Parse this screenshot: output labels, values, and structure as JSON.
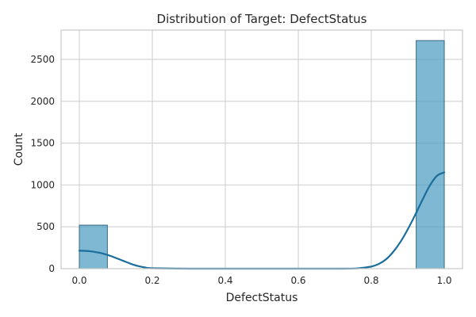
{
  "chart_data": {
    "type": "bar",
    "subtype": "histogram-with-kde",
    "title": "Distribution of Target: DefectStatus",
    "xlabel": "DefectStatus",
    "ylabel": "Count",
    "xlim": [
      -0.05,
      1.05
    ],
    "ylim": [
      0,
      2850
    ],
    "xticks": [
      0.0,
      0.2,
      0.4,
      0.6,
      0.8,
      1.0
    ],
    "xtick_labels": [
      "0.0",
      "0.2",
      "0.4",
      "0.6",
      "0.8",
      "1.0"
    ],
    "yticks": [
      0,
      500,
      1000,
      1500,
      2000,
      2500
    ],
    "ytick_labels": [
      "0",
      "500",
      "1000",
      "1500",
      "2000",
      "2500"
    ],
    "grid": true,
    "bars": [
      {
        "x0": 0.0,
        "x1": 0.0769,
        "value": 520
      },
      {
        "x0": 0.9231,
        "x1": 1.0,
        "value": 2725
      }
    ],
    "kde": {
      "x": [
        0.0,
        0.02,
        0.04,
        0.06,
        0.08,
        0.1,
        0.12,
        0.14,
        0.16,
        0.18,
        0.2,
        0.3,
        0.4,
        0.5,
        0.6,
        0.7,
        0.76,
        0.8,
        0.82,
        0.84,
        0.86,
        0.88,
        0.9,
        0.92,
        0.94,
        0.96,
        0.98,
        1.0
      ],
      "y": [
        215,
        212,
        202,
        185,
        160,
        128,
        94,
        60,
        32,
        14,
        5,
        0,
        0,
        0,
        0,
        0,
        3,
        25,
        55,
        110,
        200,
        320,
        470,
        640,
        820,
        990,
        1110,
        1150
      ]
    },
    "colors": {
      "bar_fill": "#4c9dc0",
      "bar_stroke": "#3a6a80",
      "kde_line": "#1a6e9c",
      "grid": "#d0d0d0",
      "axis_frame": "#c8c8c8",
      "text": "#262626"
    }
  }
}
